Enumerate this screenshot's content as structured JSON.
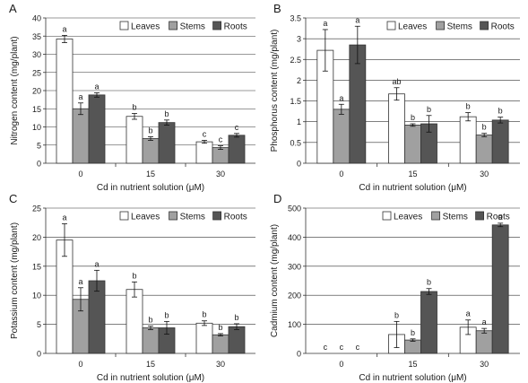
{
  "chart_data": [
    {
      "type": "bar",
      "panel_letter": "A",
      "categories": [
        "0",
        "15",
        "30"
      ],
      "series": [
        {
          "name": "Leaves",
          "values": [
            34.2,
            12.9,
            5.9
          ],
          "errors": [
            1.0,
            0.8,
            0.4
          ],
          "letters": [
            "a",
            "b",
            "c"
          ]
        },
        {
          "name": "Stems",
          "values": [
            15.0,
            6.8,
            4.3
          ],
          "errors": [
            1.6,
            0.5,
            0.5
          ],
          "letters": [
            "a",
            "b",
            "c"
          ]
        },
        {
          "name": "Roots",
          "values": [
            18.8,
            11.2,
            7.7
          ],
          "errors": [
            0.6,
            0.7,
            0.5
          ],
          "letters": [
            "a",
            "b",
            "c"
          ]
        }
      ],
      "xlabel": "Cd in nutrient solution (μM)",
      "ylabel": "Nitrogen content (mg/plant)",
      "ylim": [
        0,
        40
      ],
      "yticks": [
        0,
        5,
        10,
        15,
        20,
        25,
        30,
        35,
        40
      ],
      "grid": true,
      "legend": "top-right"
    },
    {
      "type": "bar",
      "panel_letter": "B",
      "categories": [
        "0",
        "15",
        "30"
      ],
      "series": [
        {
          "name": "Leaves",
          "values": [
            2.72,
            1.67,
            1.12
          ],
          "errors": [
            0.5,
            0.15,
            0.1
          ],
          "letters": [
            "a",
            "ab",
            "b"
          ]
        },
        {
          "name": "Stems",
          "values": [
            1.3,
            0.92,
            0.68
          ],
          "errors": [
            0.12,
            0.03,
            0.04
          ],
          "letters": [
            "a",
            "b",
            "b"
          ]
        },
        {
          "name": "Roots",
          "values": [
            2.85,
            0.95,
            1.04
          ],
          "errors": [
            0.45,
            0.2,
            0.07
          ],
          "letters": [
            "a",
            "b",
            "b"
          ]
        }
      ],
      "xlabel": "Cd in nutrient solution (μM)",
      "ylabel": "Phosphorus content (mg/plant)",
      "ylim": [
        0,
        3.5
      ],
      "yticks": [
        0,
        0.5,
        1,
        1.5,
        2,
        2.5,
        3,
        3.5
      ],
      "grid": true,
      "legend": "top-right"
    },
    {
      "type": "bar",
      "panel_letter": "C",
      "categories": [
        "0",
        "15",
        "30"
      ],
      "series": [
        {
          "name": "Leaves",
          "values": [
            19.5,
            11.0,
            5.2
          ],
          "errors": [
            2.8,
            1.3,
            0.4
          ],
          "letters": [
            "a",
            "b",
            "b"
          ]
        },
        {
          "name": "Stems",
          "values": [
            9.3,
            4.4,
            3.2
          ],
          "errors": [
            2.0,
            0.3,
            0.2
          ],
          "letters": [
            "a",
            "b",
            "b"
          ]
        },
        {
          "name": "Roots",
          "values": [
            12.5,
            4.4,
            4.6
          ],
          "errors": [
            1.8,
            1.1,
            0.5
          ],
          "letters": [
            "a",
            "b",
            "b"
          ]
        }
      ],
      "xlabel": "Cd in nutrient solution (μM)",
      "ylabel": "Potassium content (mg/plant)",
      "ylim": [
        0,
        25
      ],
      "yticks": [
        0,
        5,
        10,
        15,
        20,
        25
      ],
      "grid": true,
      "legend": "top-right"
    },
    {
      "type": "bar",
      "panel_letter": "D",
      "categories": [
        "0",
        "15",
        "30"
      ],
      "series": [
        {
          "name": "Leaves",
          "values": [
            0,
            65,
            90
          ],
          "errors": [
            0,
            45,
            25
          ],
          "letters": [
            "c",
            "b",
            "a"
          ]
        },
        {
          "name": "Stems",
          "values": [
            0,
            46,
            78
          ],
          "errors": [
            0,
            4,
            8
          ],
          "letters": [
            "c",
            "b",
            "a"
          ]
        },
        {
          "name": "Roots",
          "values": [
            0,
            213,
            442
          ],
          "errors": [
            0,
            10,
            6
          ],
          "letters": [
            "c",
            "b",
            "a"
          ]
        }
      ],
      "xlabel": "Cd in nutrient solution (μM)",
      "ylabel": "Cadmium content (mg/plant)",
      "ylim": [
        0,
        500
      ],
      "yticks": [
        0,
        100,
        200,
        300,
        400,
        500
      ],
      "grid": true,
      "legend": "top-right"
    }
  ],
  "colors": {
    "Leaves": "#ffffff",
    "Stems": "#a0a0a0",
    "Roots": "#555555",
    "bar_outline": "#333333",
    "grid": "#333333",
    "axis": "#333333",
    "text": "#1a1a1a"
  }
}
